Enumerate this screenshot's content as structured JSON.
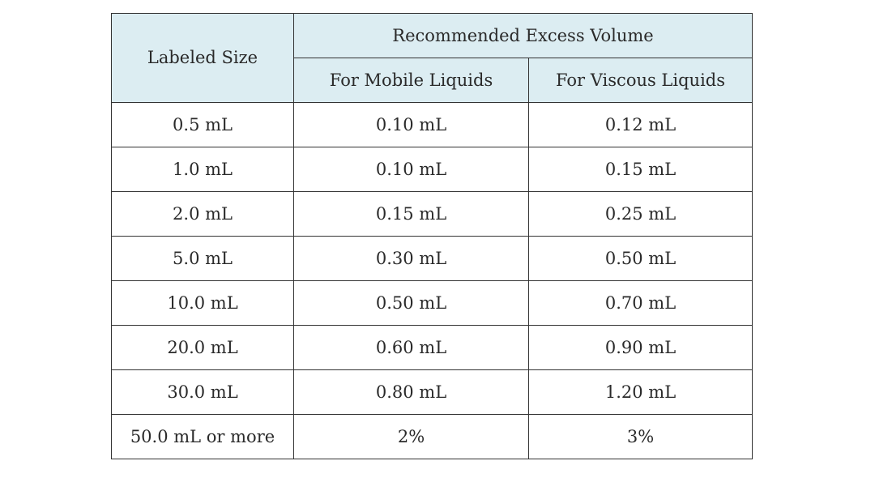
{
  "table": {
    "header": {
      "labeled_size": "Labeled Size",
      "group": "Recommended Excess Volume",
      "mobile": "For Mobile Liquids",
      "viscous": "For Viscous Liquids"
    },
    "rows": [
      {
        "size": "0.5 mL",
        "mobile": "0.10 mL",
        "viscous": "0.12 mL"
      },
      {
        "size": "1.0 mL",
        "mobile": "0.10 mL",
        "viscous": "0.15 mL"
      },
      {
        "size": "2.0 mL",
        "mobile": "0.15 mL",
        "viscous": "0.25 mL"
      },
      {
        "size": "5.0 mL",
        "mobile": "0.30 mL",
        "viscous": "0.50 mL"
      },
      {
        "size": "10.0 mL",
        "mobile": "0.50 mL",
        "viscous": "0.70 mL"
      },
      {
        "size": "20.0 mL",
        "mobile": "0.60 mL",
        "viscous": "0.90 mL"
      },
      {
        "size": "30.0 mL",
        "mobile": "0.80 mL",
        "viscous": "1.20 mL"
      },
      {
        "size": "50.0 mL or more",
        "mobile": "2%",
        "viscous": "3%"
      }
    ]
  },
  "colors": {
    "header_background": "#dcedf2",
    "border": "#333333",
    "text": "#2a2a2a"
  }
}
